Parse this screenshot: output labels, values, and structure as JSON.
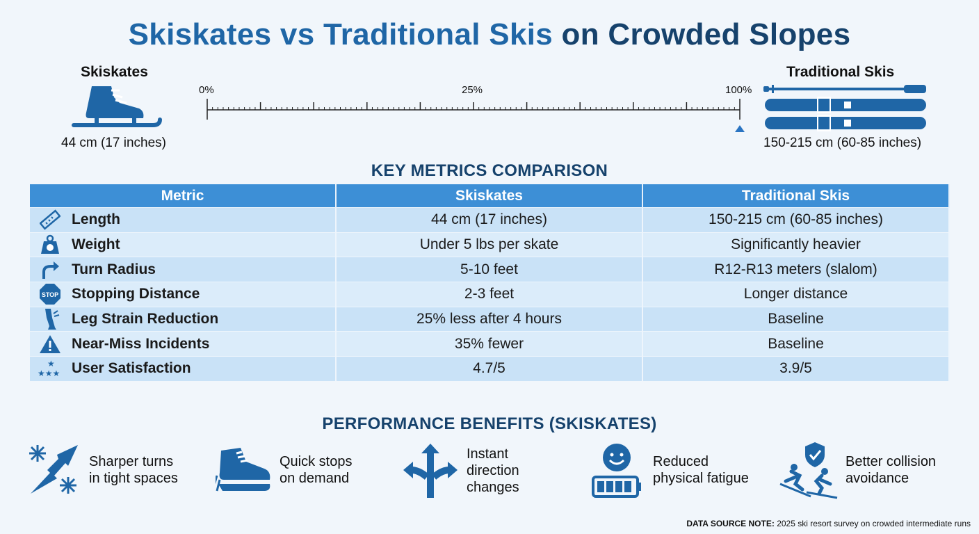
{
  "title_part1": "Skiskates vs Traditional Skis",
  "title_part2": "on Crowded Slopes",
  "left_item": {
    "label": "Skiskates",
    "value": "44 cm (17 inches)",
    "icon": "ice-skate-icon"
  },
  "right_item": {
    "label": "Traditional Skis",
    "value": "150-215 cm (60-85 inches)",
    "icon": "skis-and-poles-icon"
  },
  "scale": {
    "labels": [
      "0%",
      "25%",
      "100%"
    ],
    "marker_percent": 100
  },
  "metrics_heading": "KEY METRICS COMPARISON",
  "table": {
    "headers": [
      "Metric",
      "Skiskates",
      "Traditional Skis"
    ],
    "rows": [
      {
        "icon": "ruler-icon",
        "metric": "Length",
        "skiskates": "44 cm (17 inches)",
        "traditional": "150-215 cm (60-85 inches)"
      },
      {
        "icon": "weight-icon",
        "metric": "Weight",
        "skiskates": "Under 5 lbs per skate",
        "traditional": "Significantly heavier"
      },
      {
        "icon": "turn-arrow-icon",
        "metric": "Turn Radius",
        "skiskates": "5-10 feet",
        "traditional": "R12-R13 meters (slalom)"
      },
      {
        "icon": "stop-sign-icon",
        "icon_text": "STOP",
        "metric": "Stopping Distance",
        "skiskates": "2-3 feet",
        "traditional": "Longer distance"
      },
      {
        "icon": "leg-icon",
        "metric": "Leg Strain Reduction",
        "skiskates": "25% less after 4 hours",
        "traditional": "Baseline"
      },
      {
        "icon": "warning-icon",
        "metric": "Near-Miss Incidents",
        "skiskates": "35% fewer",
        "traditional": "Baseline"
      },
      {
        "icon": "stars-icon",
        "metric": "User Satisfaction",
        "skiskates": "4.7/5",
        "traditional": "3.9/5"
      }
    ]
  },
  "benefits_heading": "PERFORMANCE BENEFITS (SKISKATES)",
  "benefits": [
    {
      "icon": "snowflake-arrow-icon",
      "lines": [
        "Sharper turns",
        "in tight spaces"
      ]
    },
    {
      "icon": "shoe-icon",
      "lines": [
        "Quick stops",
        "on demand"
      ]
    },
    {
      "icon": "split-arrows-icon",
      "lines": [
        "Instant",
        "direction",
        "changes"
      ]
    },
    {
      "icon": "smiley-battery-icon",
      "lines": [
        "Reduced",
        "physical fatigue"
      ]
    },
    {
      "icon": "skiers-shield-icon",
      "lines": [
        "Better collision",
        "avoidance"
      ]
    }
  ],
  "note": {
    "label": "DATA SOURCE NOTE:",
    "text": "2025 ski resort survey on crowded intermediate runs"
  },
  "colors": {
    "primary": "#1f66a6",
    "dark": "#16426c",
    "header": "#3d8fd6",
    "row_odd": "#c9e2f7",
    "row_even": "#dbecfa"
  }
}
